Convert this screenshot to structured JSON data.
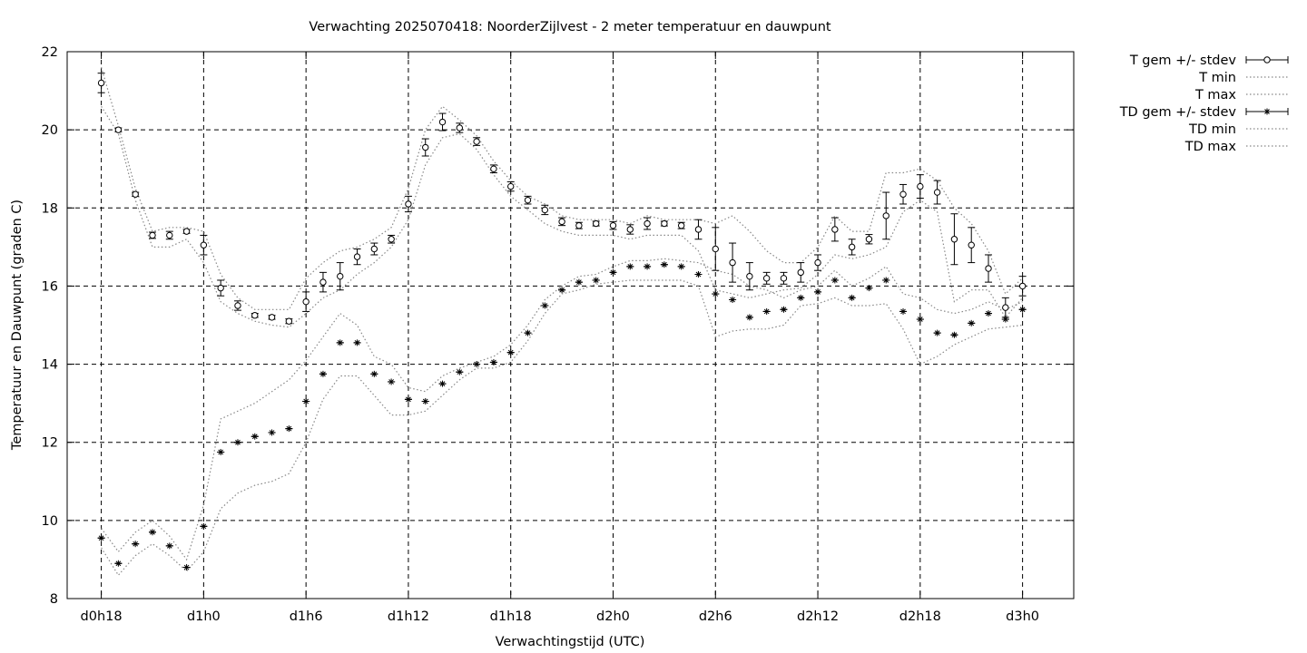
{
  "chart_data": {
    "type": "line",
    "title": "Verwachting 2025070418: NoorderZijlvest - 2 meter temperatuur en dauwpunt",
    "xlabel": "Verwachtingstijd (UTC)",
    "ylabel": "Temperatuur en Dauwpunt (graden C)",
    "x_unit": "hours",
    "xlim": [
      -2,
      57
    ],
    "ylim": [
      8,
      22
    ],
    "yticks": [
      8,
      10,
      12,
      14,
      16,
      18,
      20,
      22
    ],
    "xticks": [
      {
        "x": 0,
        "label": "d0h18"
      },
      {
        "x": 6,
        "label": "d1h0"
      },
      {
        "x": 12,
        "label": "d1h6"
      },
      {
        "x": 18,
        "label": "d1h12"
      },
      {
        "x": 24,
        "label": "d1h18"
      },
      {
        "x": 30,
        "label": "d2h0"
      },
      {
        "x": 36,
        "label": "d2h6"
      },
      {
        "x": 42,
        "label": "d2h12"
      },
      {
        "x": 48,
        "label": "d2h18"
      },
      {
        "x": 54,
        "label": "d3h0"
      }
    ],
    "grid": true,
    "legend_position": "outside-top-right",
    "x": [
      0,
      1,
      2,
      3,
      4,
      5,
      6,
      7,
      8,
      9,
      10,
      11,
      12,
      13,
      14,
      15,
      16,
      17,
      18,
      19,
      20,
      21,
      22,
      23,
      24,
      25,
      26,
      27,
      28,
      29,
      30,
      31,
      32,
      33,
      34,
      35,
      36,
      37,
      38,
      39,
      40,
      41,
      42,
      43,
      44,
      45,
      46,
      47,
      48,
      49,
      50,
      51,
      52,
      53,
      54
    ],
    "series": [
      {
        "name": "T gem +/- stdev",
        "style": "errorbars-circle",
        "values": [
          21.2,
          20.0,
          18.35,
          17.3,
          17.3,
          17.4,
          17.05,
          15.95,
          15.5,
          15.25,
          15.2,
          15.1,
          15.6,
          16.1,
          16.25,
          16.75,
          16.95,
          17.2,
          18.1,
          19.55,
          20.2,
          20.05,
          19.7,
          19.0,
          18.55,
          18.2,
          17.95,
          17.65,
          17.55,
          17.6,
          17.55,
          17.45,
          17.6,
          17.6,
          17.55,
          17.45,
          16.95,
          16.6,
          16.25,
          16.2,
          16.2,
          16.35,
          16.6,
          17.45,
          17.0,
          17.2,
          17.8,
          18.35,
          18.55,
          18.4,
          17.2,
          17.05,
          16.45,
          15.45,
          16.0
        ],
        "stdev": [
          0.25,
          0.05,
          0.05,
          0.08,
          0.1,
          0.05,
          0.25,
          0.2,
          0.12,
          0.05,
          0.05,
          0.06,
          0.25,
          0.25,
          0.35,
          0.2,
          0.15,
          0.1,
          0.2,
          0.22,
          0.22,
          0.12,
          0.1,
          0.1,
          0.12,
          0.1,
          0.12,
          0.1,
          0.08,
          0.06,
          0.1,
          0.12,
          0.15,
          0.06,
          0.08,
          0.25,
          0.55,
          0.5,
          0.35,
          0.15,
          0.15,
          0.25,
          0.2,
          0.3,
          0.2,
          0.12,
          0.6,
          0.25,
          0.3,
          0.3,
          0.65,
          0.45,
          0.35,
          0.25,
          0.25
        ]
      },
      {
        "name": "T min",
        "style": "dotted",
        "values": [
          20.6,
          19.9,
          18.2,
          17.0,
          17.0,
          17.2,
          16.6,
          15.6,
          15.3,
          15.1,
          15.0,
          14.95,
          15.3,
          15.7,
          15.9,
          16.3,
          16.6,
          17.0,
          17.7,
          19.1,
          19.8,
          19.9,
          19.5,
          18.85,
          18.3,
          17.95,
          17.6,
          17.4,
          17.3,
          17.3,
          17.3,
          17.2,
          17.3,
          17.3,
          17.3,
          16.9,
          15.9,
          15.8,
          15.7,
          15.8,
          15.9,
          15.95,
          16.3,
          16.8,
          16.7,
          16.8,
          17.0,
          17.9,
          18.2,
          17.9,
          15.6,
          15.9,
          15.9,
          15.2,
          15.7
        ]
      },
      {
        "name": "T max",
        "style": "dotted",
        "values": [
          21.6,
          20.1,
          18.5,
          17.4,
          17.5,
          17.5,
          17.4,
          16.3,
          15.7,
          15.4,
          15.4,
          15.4,
          16.2,
          16.6,
          16.9,
          17.0,
          17.2,
          17.5,
          18.5,
          20.0,
          20.6,
          20.25,
          19.85,
          19.2,
          18.7,
          18.3,
          18.1,
          17.8,
          17.7,
          17.7,
          17.7,
          17.6,
          17.8,
          17.7,
          17.7,
          17.7,
          17.6,
          17.8,
          17.4,
          16.9,
          16.6,
          16.6,
          17.0,
          17.8,
          17.4,
          17.4,
          18.9,
          18.9,
          19.0,
          18.7,
          18.0,
          17.6,
          16.9,
          15.8,
          16.2
        ]
      },
      {
        "name": "TD gem +/- stdev",
        "style": "errorbars-asterisk",
        "values": [
          9.55,
          8.9,
          9.4,
          9.7,
          9.35,
          8.8,
          9.85,
          11.75,
          12.0,
          12.15,
          12.25,
          12.35,
          13.05,
          13.75,
          14.55,
          14.55,
          13.75,
          13.55,
          13.1,
          13.05,
          13.5,
          13.8,
          14.0,
          14.05,
          14.3,
          14.8,
          15.5,
          15.9,
          16.1,
          16.15,
          16.35,
          16.5,
          16.5,
          16.55,
          16.5,
          16.3,
          15.8,
          15.65,
          15.2,
          15.35,
          15.4,
          15.7,
          15.85,
          16.15,
          15.7,
          15.95,
          16.15,
          15.35,
          15.15,
          14.8,
          14.75,
          15.05,
          15.3,
          15.15,
          15.4
        ]
      },
      {
        "name": "TD min",
        "style": "dotted",
        "values": [
          9.3,
          8.6,
          9.1,
          9.4,
          9.1,
          8.7,
          9.2,
          10.3,
          10.7,
          10.9,
          11.0,
          11.2,
          12.0,
          13.1,
          13.7,
          13.7,
          13.2,
          12.7,
          12.7,
          12.8,
          13.2,
          13.6,
          13.9,
          13.9,
          14.05,
          14.6,
          15.3,
          15.8,
          15.9,
          16.05,
          16.1,
          16.15,
          16.15,
          16.15,
          16.15,
          16.0,
          14.7,
          14.85,
          14.9,
          14.9,
          15.0,
          15.5,
          15.55,
          15.7,
          15.5,
          15.5,
          15.55,
          14.9,
          14.0,
          14.2,
          14.5,
          14.7,
          14.9,
          14.95,
          15.0
        ]
      },
      {
        "name": "TD max",
        "style": "dotted",
        "values": [
          9.8,
          9.2,
          9.7,
          10.0,
          9.6,
          9.0,
          10.4,
          12.6,
          12.8,
          13.0,
          13.3,
          13.6,
          14.1,
          14.7,
          15.3,
          15.0,
          14.2,
          14.0,
          13.4,
          13.3,
          13.7,
          13.9,
          14.05,
          14.2,
          14.5,
          15.0,
          15.65,
          16.0,
          16.25,
          16.3,
          16.5,
          16.65,
          16.65,
          16.7,
          16.65,
          16.6,
          16.4,
          16.3,
          16.0,
          15.9,
          15.7,
          15.9,
          16.0,
          16.4,
          16.0,
          16.2,
          16.5,
          15.8,
          15.7,
          15.4,
          15.3,
          15.4,
          15.6,
          15.4,
          15.6
        ]
      }
    ]
  }
}
